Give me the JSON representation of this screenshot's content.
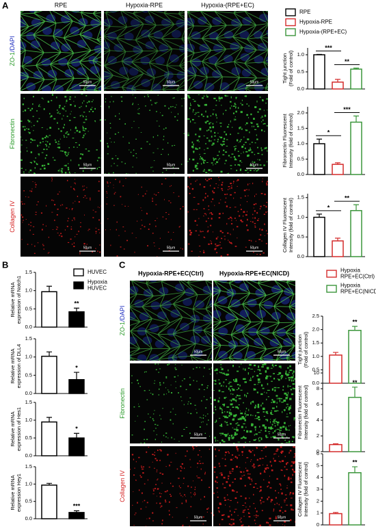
{
  "panels": {
    "A": {
      "label": "A",
      "columns": [
        "RPE",
        "Hypoxia-RPE",
        "Hypoxia-(RPE+EC)"
      ],
      "rows": [
        [
          "ZO-1",
          "/DAPI"
        ],
        [
          "Fibronectin"
        ],
        [
          "Collagen IV"
        ]
      ],
      "scale_bar": "50μm",
      "legend": [
        {
          "label": [
            "RPE"
          ],
          "color": "#000000",
          "fill": "#ffffff"
        },
        {
          "label": [
            "Hypoxia-RPE"
          ],
          "color": "#d42a2a",
          "fill": "#ffffff"
        },
        {
          "label": [
            "Hypoxia-(RPE+EC)"
          ],
          "color": "#3a953a",
          "fill": "#ffffff"
        }
      ]
    },
    "B": {
      "label": "B",
      "legend": [
        {
          "label": [
            "HUVEC"
          ],
          "color": "#000000",
          "fill": "#ffffff"
        },
        {
          "label": [
            "Hypoxia",
            "HUVEC"
          ],
          "color": "#000000",
          "fill": "#000000"
        }
      ]
    },
    "C": {
      "label": "C",
      "columns": [
        "Hypoxia-RPE+EC(Ctrl)",
        "Hypoxia-RPE+EC(NICD)"
      ],
      "rows": [
        [
          "ZO-1",
          "/DAPI"
        ],
        [
          "Fibronectin"
        ],
        [
          "Collagen IV"
        ]
      ],
      "scale_bar": "50μm",
      "legend": [
        {
          "label": [
            "Hypoxia",
            "RPE+EC(Ctrl)"
          ],
          "color": "#d42a2a",
          "fill": "#ffffff"
        },
        {
          "label": [
            "Hypoxia",
            "RPE+EC(NICD)"
          ],
          "color": "#3a953a",
          "fill": "#ffffff"
        }
      ]
    }
  },
  "chart_data": [
    {
      "type": "bar",
      "ylabel": [
        "Tight junction",
        "(Fold of control)"
      ],
      "values": [
        1.0,
        0.2,
        0.58
      ],
      "errors": [
        0.01,
        0.08,
        0.03
      ],
      "colors": [
        "#000000",
        "#d42a2a",
        "#3a953a"
      ],
      "fills": [
        "#ffffff",
        "#ffffff",
        "#ffffff"
      ],
      "ylim": [
        0,
        1.2
      ],
      "yticks": [
        {
          "value": 0,
          "label": "0.0"
        },
        {
          "value": 0.5,
          "label": "0.5"
        },
        {
          "value": 1,
          "label": "1.0"
        }
      ],
      "significance": [
        {
          "label": "***",
          "between": [
            0,
            1
          ]
        },
        {
          "label": "**",
          "between": [
            1,
            2
          ]
        }
      ]
    },
    {
      "type": "bar",
      "ylabel": [
        "Fibronectin Fluorescent",
        "Intensity (fold of control)"
      ],
      "values": [
        1.0,
        0.33,
        1.7
      ],
      "errors": [
        0.15,
        0.05,
        0.2
      ],
      "colors": [
        "#000000",
        "#d42a2a",
        "#3a953a"
      ],
      "fills": [
        "#ffffff",
        "#ffffff",
        "#ffffff"
      ],
      "ylim": [
        0,
        2.2
      ],
      "yticks": [
        {
          "value": 0,
          "label": "0.0"
        },
        {
          "value": 0.5,
          "label": "0.5"
        },
        {
          "value": 1,
          "label": "1.0"
        },
        {
          "value": 1.5,
          "label": "1.5"
        },
        {
          "value": 2,
          "label": "2.0"
        }
      ],
      "significance": [
        {
          "label": "*",
          "between": [
            0,
            1
          ]
        },
        {
          "label": "***",
          "between": [
            1,
            2
          ]
        }
      ]
    },
    {
      "type": "bar",
      "ylabel": [
        "Collagen IV Fluorescent",
        "Intensity (fold of control)"
      ],
      "values": [
        1.0,
        0.4,
        1.17
      ],
      "errors": [
        0.08,
        0.07,
        0.15
      ],
      "colors": [
        "#000000",
        "#d42a2a",
        "#3a953a"
      ],
      "fills": [
        "#ffffff",
        "#ffffff",
        "#ffffff"
      ],
      "ylim": [
        0,
        1.6
      ],
      "yticks": [
        {
          "value": 0,
          "label": "0.0"
        },
        {
          "value": 0.5,
          "label": "0.5"
        },
        {
          "value": 1,
          "label": "1.0"
        },
        {
          "value": 1.5,
          "label": "1.5"
        }
      ],
      "significance": [
        {
          "label": "*",
          "between": [
            0,
            1
          ]
        },
        {
          "label": "**",
          "between": [
            1,
            2
          ]
        }
      ]
    },
    {
      "type": "bar",
      "ylabel": [
        "Relative mRNA",
        "expression of Notch1"
      ],
      "values": [
        0.97,
        0.42
      ],
      "errors": [
        0.15,
        0.1
      ],
      "colors": [
        "#000000",
        "#000000"
      ],
      "fills": [
        "#ffffff",
        "#000000"
      ],
      "ylim": [
        0,
        1.5
      ],
      "yticks": [
        {
          "value": 0,
          "label": "0.0"
        },
        {
          "value": 0.5,
          "label": "0.5"
        },
        {
          "value": 1,
          "label": "1.0"
        },
        {
          "value": 1.5,
          "label": "1.5"
        }
      ],
      "significance": [
        {
          "label": "**",
          "above": 1
        }
      ]
    },
    {
      "type": "bar",
      "ylabel": [
        "Relative mRNA",
        "expression of DLL4"
      ],
      "values": [
        1.02,
        0.38
      ],
      "errors": [
        0.12,
        0.2
      ],
      "colors": [
        "#000000",
        "#000000"
      ],
      "fills": [
        "#ffffff",
        "#000000"
      ],
      "ylim": [
        0,
        1.5
      ],
      "yticks": [
        {
          "value": 0,
          "label": "0.0"
        },
        {
          "value": 0.5,
          "label": "0.5"
        },
        {
          "value": 1,
          "label": "1.0"
        },
        {
          "value": 1.5,
          "label": "1.5"
        }
      ],
      "significance": [
        {
          "label": "*",
          "above": 1
        }
      ]
    },
    {
      "type": "bar",
      "ylabel": [
        "Relative mRNA",
        "expression of Hes1"
      ],
      "values": [
        0.95,
        0.5
      ],
      "errors": [
        0.13,
        0.13
      ],
      "colors": [
        "#000000",
        "#000000"
      ],
      "fills": [
        "#ffffff",
        "#000000"
      ],
      "ylim": [
        0,
        1.5
      ],
      "yticks": [
        {
          "value": 0,
          "label": "0.0"
        },
        {
          "value": 0.5,
          "label": "0.5"
        },
        {
          "value": 1,
          "label": "1.0"
        },
        {
          "value": 1.5,
          "label": "1.5"
        }
      ],
      "significance": [
        {
          "label": "*",
          "above": 1
        }
      ]
    },
    {
      "type": "bar",
      "ylabel": [
        "Relative mRNA",
        "expression Hey1"
      ],
      "values": [
        0.97,
        0.18
      ],
      "errors": [
        0.05,
        0.05
      ],
      "colors": [
        "#000000",
        "#000000"
      ],
      "fills": [
        "#ffffff",
        "#000000"
      ],
      "ylim": [
        0,
        1.5
      ],
      "yticks": [
        {
          "value": 0,
          "label": "0.0"
        },
        {
          "value": 0.5,
          "label": "0.5"
        },
        {
          "value": 1,
          "label": "1.0"
        },
        {
          "value": 1.5,
          "label": "1.5"
        }
      ],
      "significance": [
        {
          "label": "***",
          "above": 1
        }
      ]
    },
    {
      "type": "bar",
      "ylabel": [
        "Tight junction",
        "(Fold of control)"
      ],
      "values": [
        1.05,
        1.97
      ],
      "errors": [
        0.1,
        0.15
      ],
      "colors": [
        "#d42a2a",
        "#3a953a"
      ],
      "fills": [
        "#ffffff",
        "#ffffff"
      ],
      "ylim": [
        0,
        2.5
      ],
      "yticks": [
        {
          "value": 0,
          "label": "0.0"
        },
        {
          "value": 0.5,
          "label": "0.5"
        },
        {
          "value": 1,
          "label": "1.0"
        },
        {
          "value": 1.5,
          "label": "1.5"
        },
        {
          "value": 2,
          "label": "2.0"
        },
        {
          "value": 2.5,
          "label": "2.5"
        }
      ],
      "significance": [
        {
          "label": "**",
          "above": 1
        }
      ]
    },
    {
      "type": "bar",
      "ylabel": [
        "Fibronectin Fluorescent",
        "Intensity (fold of control)"
      ],
      "values": [
        0.9,
        6.9
      ],
      "errors": [
        0.1,
        1.3
      ],
      "colors": [
        "#d42a2a",
        "#3a953a"
      ],
      "fills": [
        "#ffffff",
        "#ffffff"
      ],
      "ylim": [
        0,
        10
      ],
      "yticks": [
        0,
        2,
        4,
        6,
        8,
        10
      ],
      "significance": [
        {
          "label": "**",
          "above": 1
        }
      ]
    },
    {
      "type": "bar",
      "ylabel": [
        "Collagen IV Fluorescent",
        "Intensity (fold of control)"
      ],
      "values": [
        0.95,
        4.4
      ],
      "errors": [
        0.1,
        0.5
      ],
      "colors": [
        "#d42a2a",
        "#3a953a"
      ],
      "fills": [
        "#ffffff",
        "#ffffff"
      ],
      "ylim": [
        0,
        6
      ],
      "yticks": [
        0,
        1,
        2,
        3,
        4,
        5,
        6
      ],
      "significance": [
        {
          "label": "**",
          "above": 1
        }
      ]
    }
  ]
}
